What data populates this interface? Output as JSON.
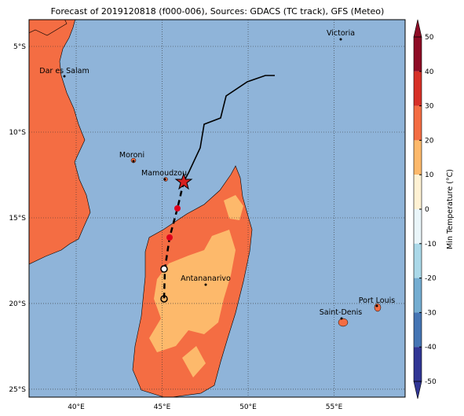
{
  "title": "Forecast of 2019120818 (f000-006), Sources: GDACS (TC track), GFS (Meteo)",
  "map": {
    "lonlim": [
      37.26,
      59.13
    ],
    "latlim": [
      -25.46,
      -3.44
    ],
    "lonticks": [
      {
        "value": 40,
        "label": "40°E"
      },
      {
        "value": 45,
        "label": "45°E"
      },
      {
        "value": 50,
        "label": "50°E"
      },
      {
        "value": 55,
        "label": "55°E"
      }
    ],
    "latticks": [
      {
        "value": -5,
        "label": "5°S"
      },
      {
        "value": -10,
        "label": "10°S"
      },
      {
        "value": -15,
        "label": "15°S"
      },
      {
        "value": -20,
        "label": "20°S"
      },
      {
        "value": -25,
        "label": "25°S"
      }
    ],
    "cities": [
      "Victoria",
      "Dar es Salam",
      "Moroni",
      "Mamoudzou",
      "Antananarivo",
      "Saint-Denis",
      "Port Louis"
    ]
  },
  "colorbar": {
    "label": "Min Temperature (°C)",
    "lim": [
      -50,
      50
    ],
    "ticks": [
      50,
      40,
      30,
      20,
      10,
      0,
      -10,
      -20,
      -30,
      -40,
      -50
    ],
    "colors": [
      "#8e0c26",
      "#d73027",
      "#f46d43",
      "#fdb96b",
      "#fff2d4",
      "#eaf6fa",
      "#abd9e9",
      "#74add1",
      "#4575b4",
      "#313695"
    ]
  }
}
